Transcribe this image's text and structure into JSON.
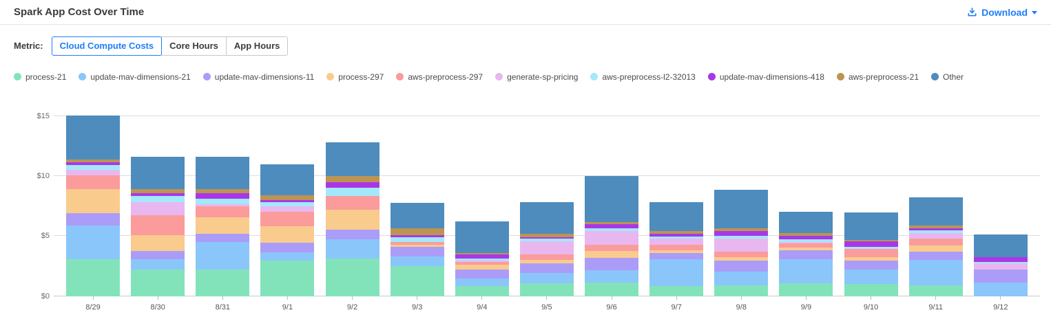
{
  "header": {
    "title": "Spark App Cost Over Time",
    "download_label": "Download"
  },
  "metric": {
    "label": "Metric:",
    "options": [
      {
        "label": "Cloud Compute Costs",
        "selected": true
      },
      {
        "label": "Core Hours",
        "selected": false
      },
      {
        "label": "App Hours",
        "selected": false
      }
    ]
  },
  "colors": {
    "accent_blue": "#1f7ef6",
    "gridline": "#dcdcdc",
    "axis_text": "#666666"
  },
  "chart_data": {
    "type": "bar",
    "stacked": true,
    "title": "Spark App Cost Over Time",
    "xlabel": "",
    "ylabel": "",
    "ylim": [
      0,
      15.5
    ],
    "yticks": [
      0,
      5,
      10,
      15
    ],
    "ytick_labels": [
      "$0",
      "$5",
      "$10",
      "$15"
    ],
    "grid": true,
    "legend_position": "top",
    "categories": [
      "8/29",
      "8/30",
      "8/31",
      "9/1",
      "9/2",
      "9/3",
      "9/4",
      "9/5",
      "9/6",
      "9/7",
      "9/8",
      "9/9",
      "9/10",
      "9/11",
      "9/12"
    ],
    "series": [
      {
        "name": "process-21",
        "color": "#82e3bb",
        "values": [
          3.05,
          2.2,
          2.2,
          2.95,
          3.15,
          2.5,
          0.82,
          1.05,
          1.1,
          0.82,
          0.91,
          1.05,
          1.0,
          0.87,
          0.0
        ]
      },
      {
        "name": "update-mav-dimensions-21",
        "color": "#8ac6fa",
        "values": [
          2.85,
          0.85,
          2.3,
          0.7,
          1.6,
          0.78,
          0.67,
          0.88,
          1.05,
          2.25,
          1.14,
          2.0,
          1.2,
          2.13,
          1.15
        ]
      },
      {
        "name": "update-mav-dimensions-11",
        "color": "#ab9cf8",
        "values": [
          1.0,
          0.7,
          0.7,
          0.8,
          0.8,
          0.8,
          0.7,
          0.8,
          1.05,
          0.51,
          0.9,
          0.74,
          0.76,
          0.7,
          1.05
        ]
      },
      {
        "name": "process-297",
        "color": "#f9cb8d",
        "values": [
          2.0,
          1.3,
          1.35,
          1.35,
          1.65,
          0.22,
          0.44,
          0.28,
          0.57,
          0.23,
          0.3,
          0.25,
          0.3,
          0.53,
          0.0
        ]
      },
      {
        "name": "aws-preprocess-297",
        "color": "#fb9b9b",
        "values": [
          1.15,
          1.7,
          0.95,
          1.2,
          1.15,
          0.2,
          0.23,
          0.48,
          0.51,
          0.48,
          0.46,
          0.34,
          0.65,
          0.53,
          0.0
        ]
      },
      {
        "name": "generate-sp-pricing",
        "color": "#e8b7ef",
        "values": [
          0.46,
          1.1,
          0.15,
          0.45,
          0.0,
          0.0,
          0.1,
          1.05,
          1.16,
          0.5,
          1.07,
          0.1,
          0.0,
          0.51,
          0.55
        ]
      },
      {
        "name": "aws-preprocess-l2-32013",
        "color": "#a3e8fb",
        "values": [
          0.42,
          0.5,
          0.45,
          0.35,
          0.7,
          0.38,
          0.19,
          0.23,
          0.23,
          0.19,
          0.23,
          0.27,
          0.19,
          0.23,
          0.08
        ]
      },
      {
        "name": "update-mav-dimensions-418",
        "color": "#a937e8",
        "values": [
          0.2,
          0.23,
          0.45,
          0.22,
          0.45,
          0.22,
          0.34,
          0.15,
          0.34,
          0.19,
          0.42,
          0.25,
          0.44,
          0.15,
          0.42
        ]
      },
      {
        "name": "aws-preprocess-21",
        "color": "#bd9452",
        "values": [
          0.26,
          0.35,
          0.35,
          0.38,
          0.5,
          0.52,
          0.1,
          0.25,
          0.17,
          0.27,
          0.19,
          0.23,
          0.15,
          0.23,
          0.0
        ]
      },
      {
        "name": "Other",
        "color": "#4d8cbd",
        "values": [
          3.66,
          2.67,
          2.7,
          2.6,
          2.8,
          2.13,
          2.61,
          2.68,
          3.82,
          2.41,
          3.23,
          1.82,
          2.26,
          2.37,
          1.9
        ]
      }
    ]
  }
}
